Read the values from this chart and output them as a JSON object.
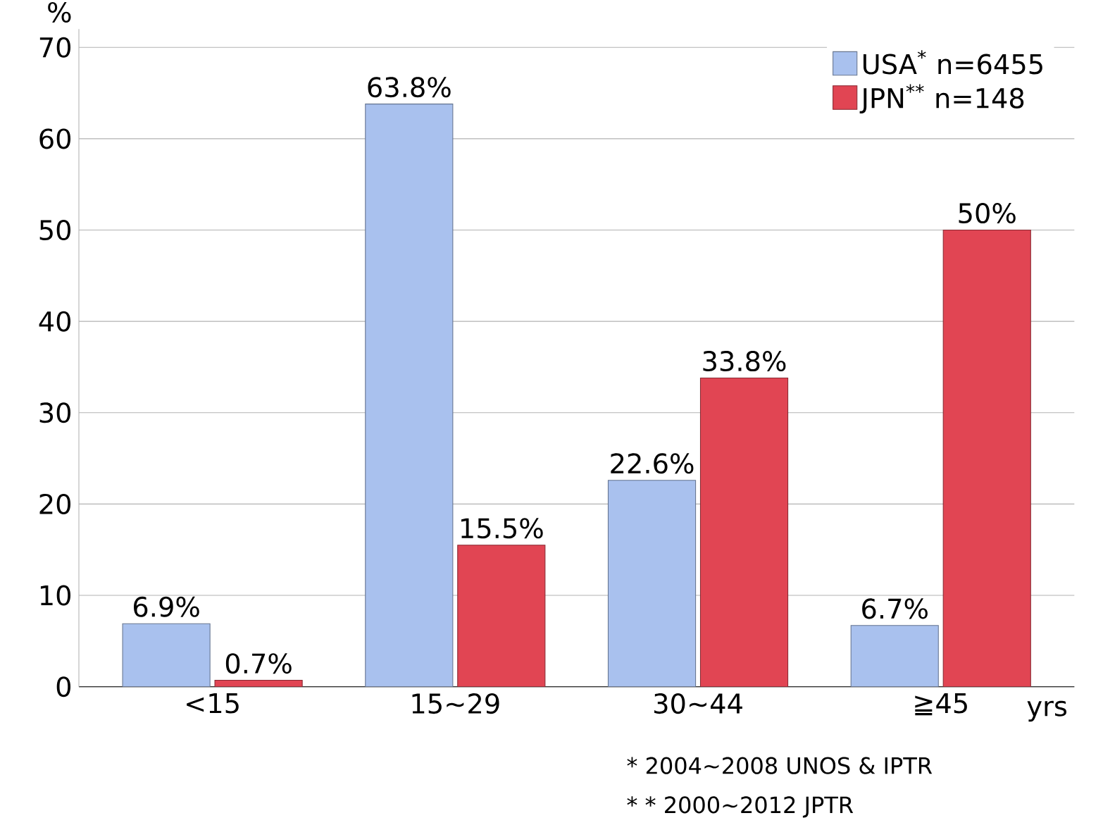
{
  "chart_data": {
    "type": "bar",
    "xlabel": "yrs",
    "ylabel": "%",
    "categories": [
      "<15",
      "15~29",
      "30~44",
      "≧45"
    ],
    "series": [
      {
        "name": "USA$^{*}$ n=6455",
        "color": "#a9c1ee",
        "values": [
          6.9,
          63.8,
          22.6,
          6.7
        ],
        "value_labels": [
          "6.9%",
          "63.8%",
          "22.6%",
          "6.7%"
        ]
      },
      {
        "name": "JPN$^{**}$ n=148",
        "color": "#e14553",
        "values": [
          0.7,
          15.5,
          33.8,
          50
        ],
        "value_labels": [
          "0.7%",
          "15.5%",
          "33.8%",
          "50%"
        ]
      }
    ],
    "ylim": [
      0,
      72
    ],
    "yticks": [
      0,
      10,
      20,
      30,
      40,
      50,
      60,
      70
    ],
    "grid": "y",
    "legend": "top right",
    "annotations": [
      "* 2004~2008    UNOS & IPTR",
      "* * 2000~2012    JPTR"
    ]
  }
}
